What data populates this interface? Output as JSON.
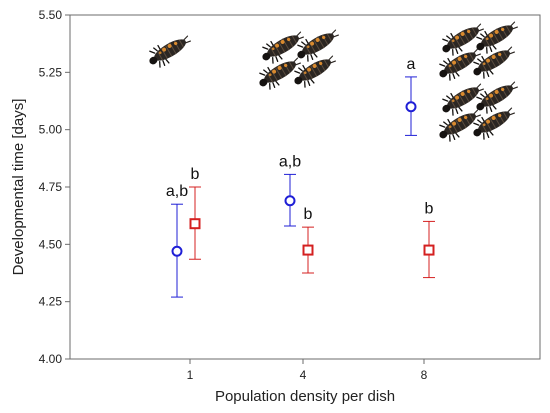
{
  "chart_data": {
    "type": "scatter",
    "xlabel": "Population density per dish",
    "ylabel": "Developmental time [days]",
    "categories": [
      "1",
      "4",
      "8"
    ],
    "ylim": [
      4.0,
      5.5
    ],
    "yticks": [
      "4.00",
      "4.25",
      "4.50",
      "4.75",
      "5.00",
      "5.25",
      "5.50"
    ],
    "grid": false,
    "colors": {
      "blue": "#1f1fd6",
      "red": "#d42020"
    },
    "series": [
      {
        "marker": "circle",
        "color": "#1f1fd6",
        "points": [
          {
            "category": "1",
            "mean": 4.47,
            "lower": 4.27,
            "upper": 4.675,
            "label": "a,b"
          },
          {
            "category": "4",
            "mean": 4.69,
            "lower": 4.58,
            "upper": 4.805,
            "label": "a,b"
          },
          {
            "category": "8",
            "mean": 5.1,
            "lower": 4.975,
            "upper": 5.23,
            "label": "a"
          }
        ]
      },
      {
        "marker": "square",
        "color": "#d42020",
        "points": [
          {
            "category": "1",
            "mean": 4.59,
            "lower": 4.435,
            "upper": 4.75,
            "label": "b"
          },
          {
            "category": "4",
            "mean": 4.475,
            "lower": 4.375,
            "upper": 4.575,
            "label": "b"
          },
          {
            "category": "8",
            "mean": 4.475,
            "lower": 4.355,
            "upper": 4.6,
            "label": "b"
          }
        ]
      }
    ],
    "illustrations": [
      {
        "category": "1",
        "count": 1,
        "icon": "larva-icon"
      },
      {
        "category": "4",
        "count": 4,
        "icon": "larva-icon"
      },
      {
        "category": "8",
        "count": 8,
        "icon": "larva-icon"
      }
    ]
  }
}
